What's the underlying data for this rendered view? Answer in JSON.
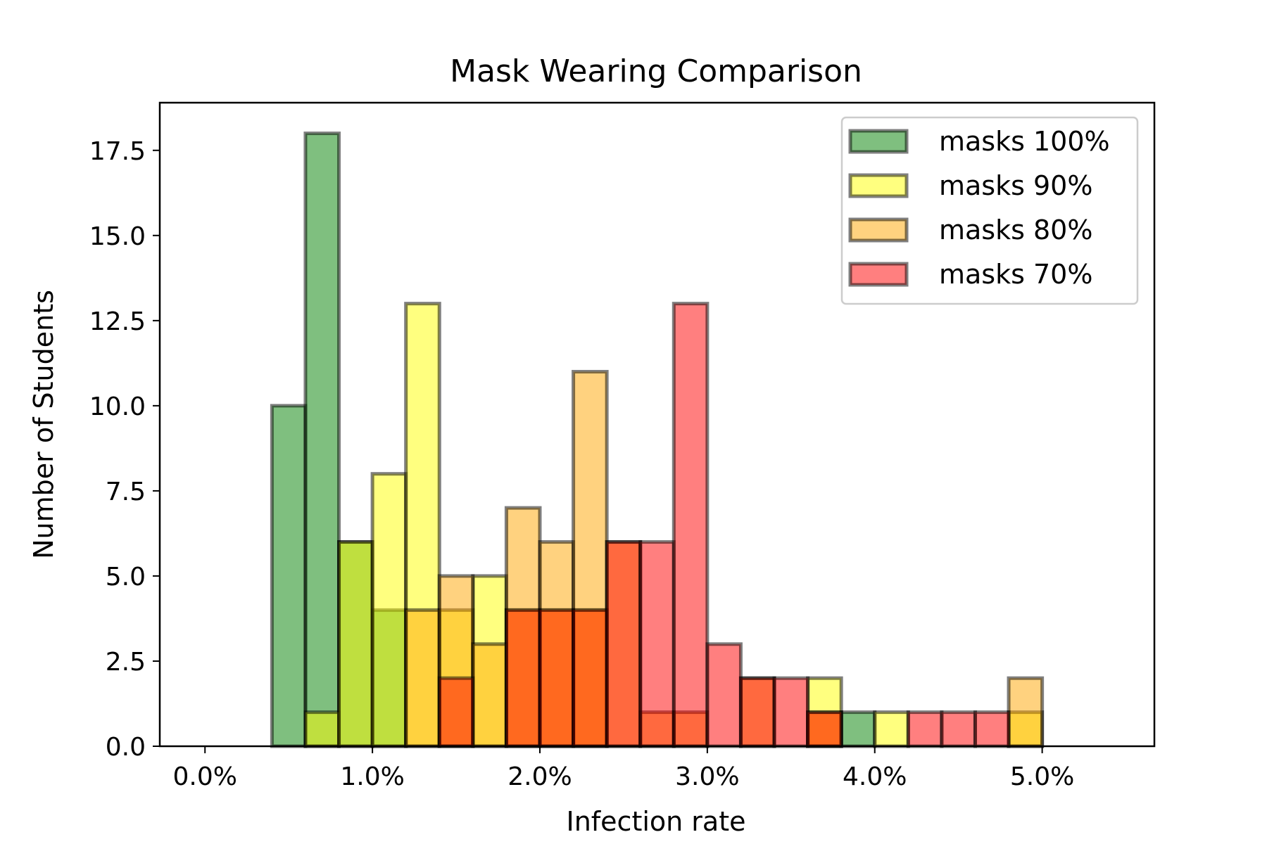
{
  "chart_data": {
    "type": "bar",
    "title": "Mask Wearing Comparison",
    "xlabel": "Infection rate",
    "ylabel": "Number of Students",
    "xlim": [
      -0.0027,
      0.0567
    ],
    "ylim": [
      0,
      18.9
    ],
    "bin_width": 0.002,
    "x_ticks": [
      {
        "value": 0.0,
        "label": "0.0%"
      },
      {
        "value": 0.01,
        "label": "1.0%"
      },
      {
        "value": 0.02,
        "label": "2.0%"
      },
      {
        "value": 0.03,
        "label": "3.0%"
      },
      {
        "value": 0.04,
        "label": "4.0%"
      },
      {
        "value": 0.05,
        "label": "5.0%"
      }
    ],
    "y_ticks": [
      {
        "value": 0.0,
        "label": "0.0"
      },
      {
        "value": 2.5,
        "label": "2.5"
      },
      {
        "value": 5.0,
        "label": "5.0"
      },
      {
        "value": 7.5,
        "label": "7.5"
      },
      {
        "value": 10.0,
        "label": "10.0"
      },
      {
        "value": 12.5,
        "label": "12.5"
      },
      {
        "value": 15.0,
        "label": "15.0"
      },
      {
        "value": 17.5,
        "label": "17.5"
      }
    ],
    "bin_starts": [
      0.0,
      0.002,
      0.004,
      0.006,
      0.008,
      0.01,
      0.012,
      0.014,
      0.016,
      0.018,
      0.02,
      0.022,
      0.024,
      0.026,
      0.028,
      0.03,
      0.032,
      0.034,
      0.036,
      0.038,
      0.04,
      0.042,
      0.044,
      0.046,
      0.048,
      0.05,
      0.052
    ],
    "series": [
      {
        "name": "masks 100%",
        "color": "#008000",
        "values": [
          0,
          0,
          10,
          18,
          6,
          4,
          0,
          0,
          0,
          0,
          0,
          0,
          0,
          0,
          0,
          0,
          0,
          0,
          0,
          1,
          0,
          0,
          0,
          0,
          0,
          0,
          0
        ]
      },
      {
        "name": "masks 90%",
        "color": "#ffff00",
        "values": [
          0,
          0,
          0,
          1,
          6,
          8,
          13,
          4,
          5,
          4,
          4,
          4,
          0,
          0,
          0,
          0,
          0,
          0,
          2,
          0,
          1,
          0,
          0,
          0,
          1,
          0,
          0
        ]
      },
      {
        "name": "masks 80%",
        "color": "#ffa500",
        "values": [
          0,
          0,
          0,
          0,
          0,
          0,
          4,
          5,
          3,
          7,
          6,
          11,
          6,
          1,
          1,
          0,
          2,
          0,
          1,
          0,
          0,
          0,
          0,
          0,
          2,
          0,
          0
        ]
      },
      {
        "name": "masks 70%",
        "color": "#ff0000",
        "values": [
          0,
          0,
          0,
          0,
          0,
          0,
          0,
          2,
          0,
          4,
          4,
          4,
          6,
          6,
          13,
          3,
          2,
          2,
          1,
          0,
          0,
          1,
          1,
          1,
          0,
          0,
          0
        ]
      }
    ],
    "grid": false,
    "legend_position": "upper right"
  }
}
